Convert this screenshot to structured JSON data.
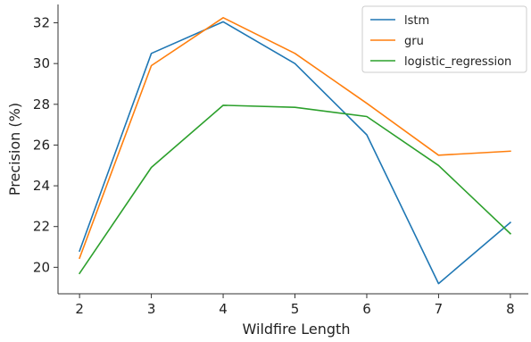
{
  "chart_data": {
    "type": "line",
    "title": "",
    "xlabel": "Wildfire Length",
    "ylabel": "Precision (%)",
    "x": [
      2,
      3,
      4,
      5,
      6,
      7,
      8
    ],
    "xlim": [
      1.7,
      8.25
    ],
    "ylim": [
      18.7,
      32.9
    ],
    "xticks": [
      2,
      3,
      4,
      5,
      6,
      7,
      8
    ],
    "yticks": [
      20,
      22,
      24,
      26,
      28,
      30,
      32
    ],
    "grid": false,
    "legend_position": "top-right",
    "series": [
      {
        "name": "lstm",
        "color": "#1f77b4",
        "values": [
          20.8,
          30.5,
          32.05,
          30.0,
          26.5,
          19.2,
          22.2
        ]
      },
      {
        "name": "gru",
        "color": "#ff7f0e",
        "values": [
          20.45,
          29.9,
          32.25,
          30.5,
          28.05,
          25.5,
          25.7
        ]
      },
      {
        "name": "logistic_regression",
        "color": "#2ca02c",
        "values": [
          19.7,
          24.9,
          27.95,
          27.85,
          27.4,
          25.0,
          21.65
        ]
      }
    ]
  }
}
